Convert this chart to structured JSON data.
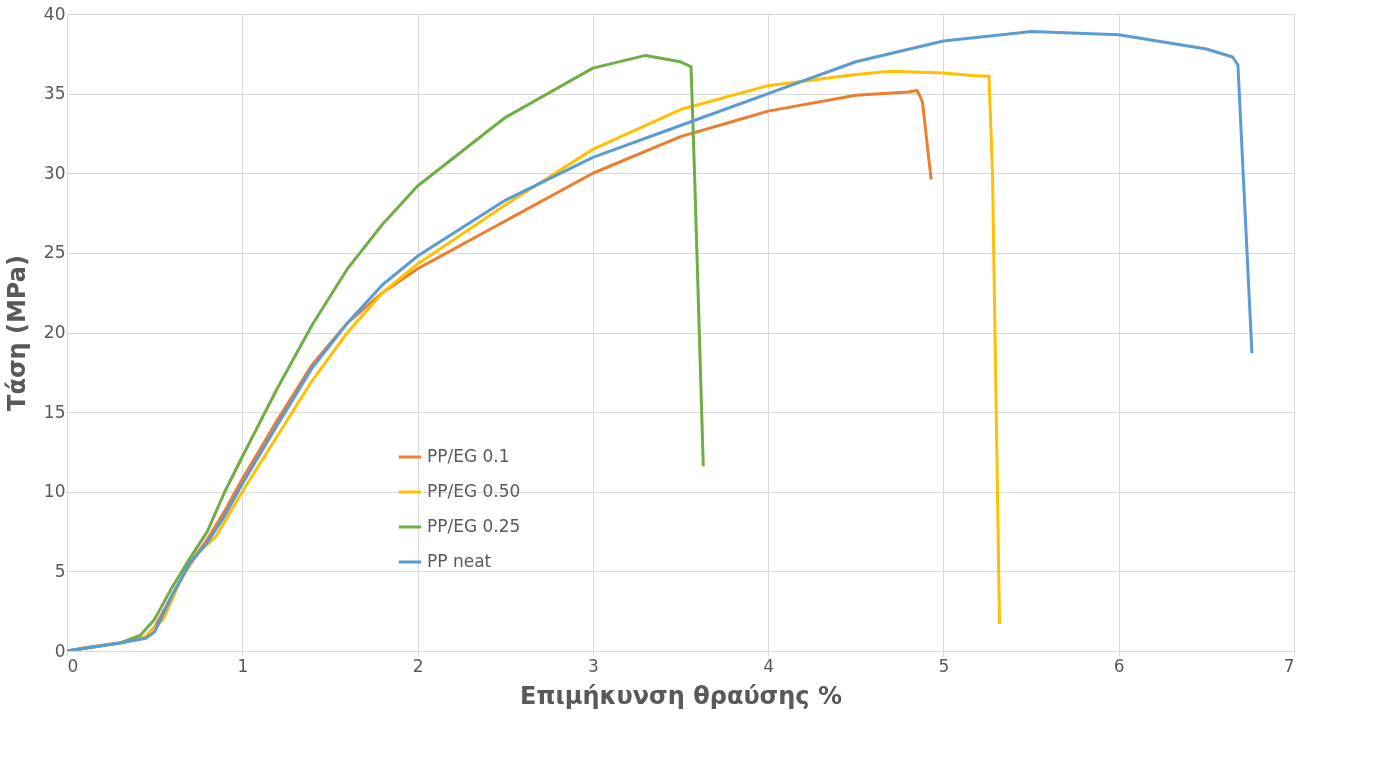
{
  "chart_data": {
    "type": "line",
    "xlabel": "Επιμήκυνση θραύσης %",
    "ylabel": "Τάση (MPa)",
    "xlim": [
      0,
      7
    ],
    "xticks": [
      0,
      1,
      2,
      3,
      4,
      5,
      6,
      7
    ],
    "ylim": [
      0,
      40
    ],
    "yticks": [
      0,
      5,
      10,
      15,
      20,
      25,
      30,
      35,
      40
    ],
    "grid": true,
    "legend": "left",
    "marker": "none",
    "line_style": "solid",
    "series": [
      {
        "name": "PP/EG 0.1",
        "color": "#ed7d31",
        "x": [
          0,
          0.1,
          0.3,
          0.45,
          0.5,
          0.6,
          0.7,
          0.8,
          0.9,
          1.0,
          1.2,
          1.4,
          1.6,
          1.8,
          2.0,
          2.5,
          3.0,
          3.5,
          4.0,
          4.5,
          4.8,
          4.85,
          4.88,
          4.93
        ],
        "values": [
          0,
          0.2,
          0.5,
          0.9,
          1.5,
          3.5,
          5.5,
          7,
          8.8,
          10.8,
          14.5,
          18,
          20.6,
          22.5,
          24,
          27,
          30,
          32.3,
          33.9,
          34.9,
          35.1,
          35.2,
          34.5,
          29.6
        ]
      },
      {
        "name": "PP/EG 0.50",
        "color": "#ffc000",
        "x": [
          0,
          0.3,
          0.45,
          0.55,
          0.65,
          0.75,
          0.85,
          1.0,
          1.2,
          1.4,
          1.6,
          1.8,
          2.0,
          2.5,
          3.0,
          3.5,
          4.0,
          4.5,
          4.7,
          5.0,
          5.2,
          5.26,
          5.28,
          5.32
        ],
        "values": [
          0,
          0.5,
          0.9,
          2,
          4.5,
          6.2,
          7.2,
          10,
          13.5,
          17,
          20,
          22.5,
          24.3,
          28,
          31.5,
          34,
          35.5,
          36.2,
          36.4,
          36.3,
          36.1,
          36.1,
          30,
          1.7
        ]
      },
      {
        "name": "PP/EG 0.25",
        "color": "#70ad47",
        "x": [
          0,
          0.3,
          0.42,
          0.5,
          0.6,
          0.7,
          0.8,
          0.9,
          1.0,
          1.2,
          1.4,
          1.6,
          1.8,
          2.0,
          2.5,
          3.0,
          3.3,
          3.5,
          3.56,
          3.58,
          3.63
        ],
        "values": [
          0,
          0.5,
          1,
          2,
          4,
          5.8,
          7.5,
          10,
          12.2,
          16.5,
          20.5,
          24,
          26.8,
          29.2,
          33.5,
          36.6,
          37.4,
          37,
          36.7,
          30,
          11.6
        ]
      },
      {
        "name": "PP neat",
        "color": "#5b9bd5",
        "x": [
          0,
          0.3,
          0.45,
          0.5,
          0.6,
          0.7,
          0.8,
          0.9,
          1.0,
          1.2,
          1.4,
          1.6,
          1.8,
          2.0,
          2.5,
          3.0,
          3.5,
          4.0,
          4.5,
          5.0,
          5.5,
          6.0,
          6.5,
          6.65,
          6.68,
          6.71,
          6.76
        ],
        "values": [
          0,
          0.5,
          0.8,
          1.2,
          3.5,
          5.5,
          6.8,
          8.5,
          10.5,
          14.2,
          17.8,
          20.6,
          23,
          24.8,
          28.3,
          31,
          33,
          35,
          37,
          38.3,
          38.9,
          38.7,
          37.8,
          37.3,
          36.8,
          30,
          18.7
        ]
      }
    ]
  }
}
